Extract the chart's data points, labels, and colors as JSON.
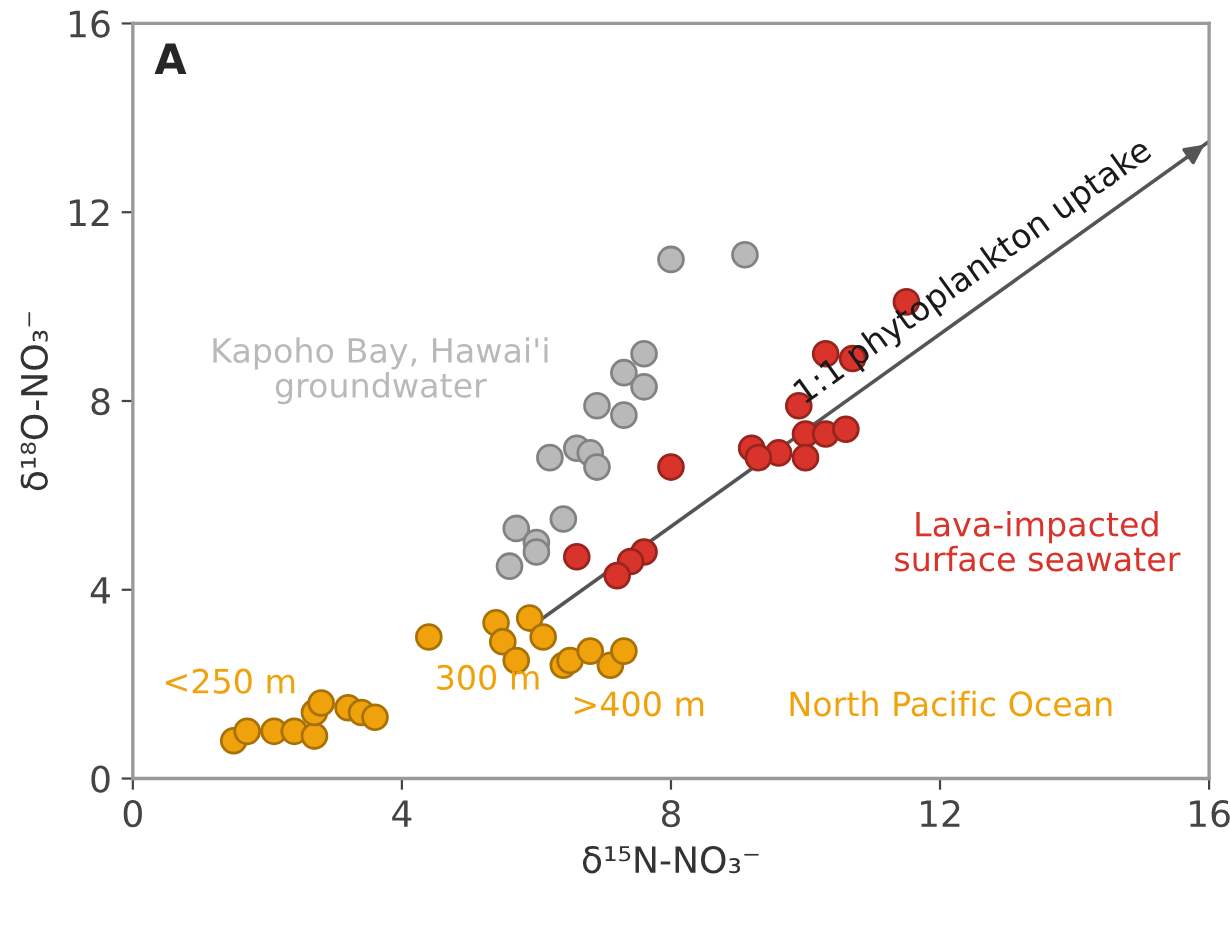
{
  "chart_data": {
    "type": "scatter",
    "title": "A",
    "xlabel": "δ¹⁵N-NO₃⁻",
    "ylabel": "δ¹⁸O-NO₃⁻",
    "xlim": [
      0,
      16
    ],
    "ylim": [
      0,
      16
    ],
    "xticks": [
      0,
      4,
      8,
      12,
      16
    ],
    "yticks": [
      0,
      4,
      8,
      12,
      16
    ],
    "grid": false,
    "marker": "circle",
    "series": [
      {
        "name": "Kapoho Bay, Hawai'i\ngroundwater",
        "color": "#b9b9b9",
        "x": [
          8.0,
          9.1,
          7.6,
          7.3,
          7.6,
          6.9,
          7.3,
          6.2,
          6.6,
          6.8,
          6.9,
          5.7,
          6.4,
          6.0,
          5.6,
          6.0
        ],
        "values": [
          11.0,
          11.1,
          9.0,
          8.6,
          8.3,
          7.9,
          7.7,
          6.8,
          7.0,
          6.9,
          6.6,
          5.3,
          5.5,
          5.0,
          4.5,
          4.8
        ]
      },
      {
        "name": "Lava-impacted\nsurface seawater",
        "color": "#d9342b",
        "x": [
          11.5,
          10.3,
          10.7,
          9.9,
          10.0,
          10.3,
          10.6,
          9.2,
          9.6,
          9.3,
          10.0,
          8.0,
          6.6,
          7.6,
          7.4,
          7.2
        ],
        "values": [
          10.1,
          9.0,
          8.9,
          7.9,
          7.3,
          7.3,
          7.4,
          7.0,
          6.9,
          6.8,
          6.8,
          6.6,
          4.7,
          4.8,
          4.6,
          4.3
        ]
      },
      {
        "name": "<250 m",
        "color": "#f0a20c",
        "x": [
          1.5,
          1.7,
          2.1,
          2.4,
          2.7,
          2.7,
          2.8,
          3.2,
          3.4,
          3.6
        ],
        "values": [
          0.8,
          1.0,
          1.0,
          1.0,
          0.9,
          1.4,
          1.6,
          1.5,
          1.4,
          1.3
        ]
      },
      {
        "name": "300 m",
        "color": "#f0a20c",
        "x": [
          4.4,
          5.4,
          5.5,
          5.7,
          5.9,
          6.1
        ],
        "values": [
          3.0,
          3.3,
          2.9,
          2.5,
          3.4,
          3.0
        ]
      },
      {
        "name": ">400 m",
        "color": "#f0a20c",
        "x": [
          6.4,
          6.5,
          6.8,
          7.1,
          7.3
        ],
        "values": [
          2.4,
          2.5,
          2.7,
          2.4,
          2.7
        ]
      },
      {
        "type": "line",
        "marker": "none",
        "color": "#555555",
        "x": [
          6.0,
          16.0
        ],
        "values": [
          3.3,
          13.5
        ]
      }
    ],
    "annotations": [
      "North Pacific Ocean",
      {
        "text": "1:1 phytoplankton uptake",
        "x": 12.8,
        "y": 10.2
      }
    ]
  }
}
